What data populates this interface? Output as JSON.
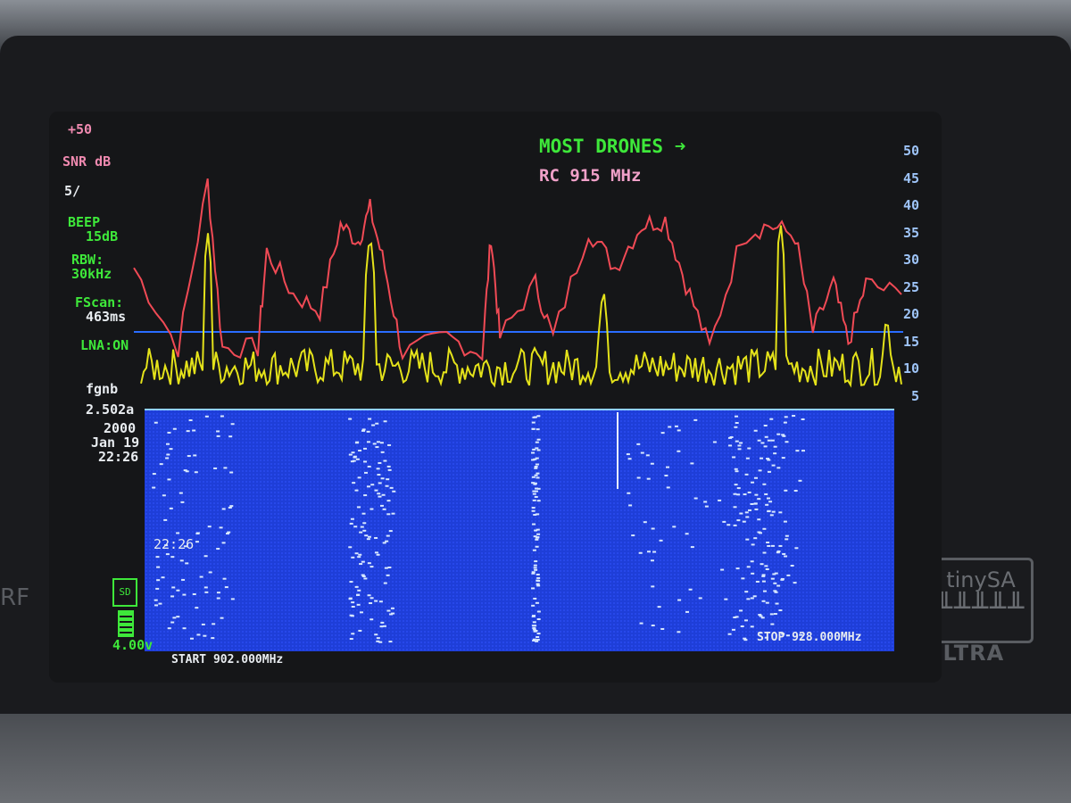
{
  "device": {
    "brand_logo": "tinySA",
    "model": "ULTRA",
    "port_label": "RF"
  },
  "header": {
    "preset_label": "MOST DRONES ➜",
    "subtitle": "RC 915 MHz"
  },
  "left_panel": {
    "ref_level": "+50",
    "unit": "SNR dB",
    "scale": "5/",
    "beep_label": "BEEP",
    "beep_value": "15dB",
    "rbw_label": "RBW:",
    "rbw_value": "30kHz",
    "fscan_label": "FScan:",
    "fscan_value": "463ms",
    "lna": "LNA:ON",
    "fw_label": "fgnb",
    "fw_version": "2.502a",
    "date_year": "2000",
    "date_day": "Jan 19",
    "time": "22:26",
    "waterfall_time": "22:26",
    "sd_icon": "SD",
    "battery_voltage": "4.00v"
  },
  "y_axis": {
    "ticks": [
      "50",
      "45",
      "40",
      "35",
      "30",
      "25",
      "20",
      "15",
      "10",
      "5"
    ],
    "range": [
      5,
      50
    ]
  },
  "footer": {
    "start": "START 902.000MHz",
    "stop": "STOP 928.000MHz"
  },
  "colors": {
    "red_trace": "#f04a55",
    "yellow_trace": "#e4e21a",
    "threshold": "#2a6cff",
    "waterfall": "#1e3ed8"
  },
  "traces": {
    "x_range_mhz": [
      902,
      928
    ],
    "threshold_db": 16,
    "red": [
      [
        902.0,
        28
      ],
      [
        903.5,
        13
      ],
      [
        904.5,
        44
      ],
      [
        905.0,
        13
      ],
      [
        906.2,
        13
      ],
      [
        906.5,
        31
      ],
      [
        907.4,
        23
      ],
      [
        908.3,
        20
      ],
      [
        909.0,
        36
      ],
      [
        909.6,
        33
      ],
      [
        910.0,
        39
      ],
      [
        910.5,
        28
      ],
      [
        911.1,
        12
      ],
      [
        912.6,
        15
      ],
      [
        913.8,
        12
      ],
      [
        914.1,
        34
      ],
      [
        914.4,
        15
      ],
      [
        915.6,
        25
      ],
      [
        916.2,
        15
      ],
      [
        917.4,
        35
      ],
      [
        918.3,
        28
      ],
      [
        919.2,
        36
      ],
      [
        920.0,
        37
      ],
      [
        920.7,
        25
      ],
      [
        921.5,
        13
      ],
      [
        922.6,
        34
      ],
      [
        923.5,
        36
      ],
      [
        924.4,
        34
      ],
      [
        925.0,
        16
      ],
      [
        925.7,
        25
      ],
      [
        926.2,
        14
      ],
      [
        926.8,
        25
      ],
      [
        928.0,
        23
      ]
    ],
    "yellow_peaks": [
      [
        904.5,
        35
      ],
      [
        910.0,
        35
      ],
      [
        917.9,
        25
      ],
      [
        923.9,
        37
      ],
      [
        927.5,
        20
      ]
    ]
  }
}
